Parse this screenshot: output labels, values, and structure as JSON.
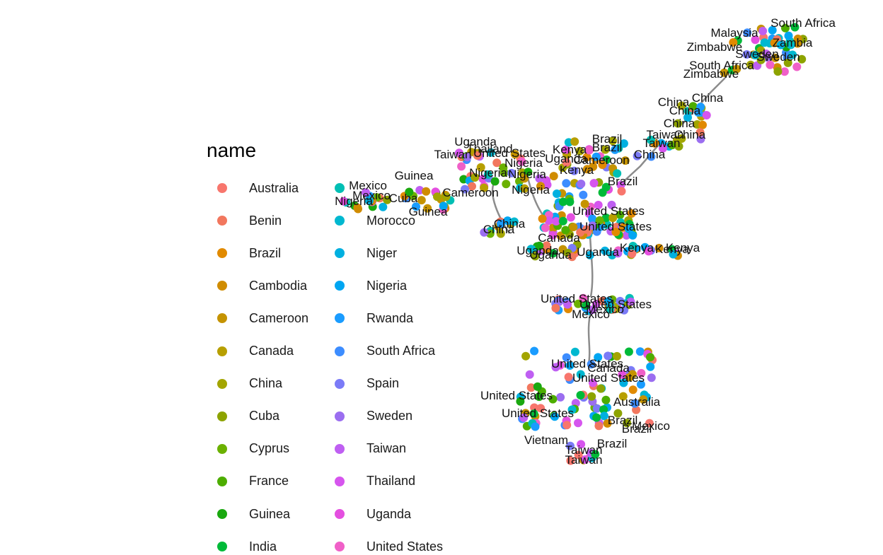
{
  "legend": {
    "title": "name",
    "items": [
      {
        "label": "Australia",
        "color": "#F8766D"
      },
      {
        "label": "Benin",
        "color": "#F2775E"
      },
      {
        "label": "Brazil",
        "color": "#E18A00"
      },
      {
        "label": "Cambodia",
        "color": "#D08C00"
      },
      {
        "label": "Cameroon",
        "color": "#C59300"
      },
      {
        "label": "Canada",
        "color": "#B79F00"
      },
      {
        "label": "China",
        "color": "#A3A500"
      },
      {
        "label": "Cuba",
        "color": "#8DA300"
      },
      {
        "label": "Cyprus",
        "color": "#6BB100"
      },
      {
        "label": "France",
        "color": "#4DAD00"
      },
      {
        "label": "Guinea",
        "color": "#1AA80F"
      },
      {
        "label": "India",
        "color": "#00BA38"
      },
      {
        "label": "",
        "color": "#00BFB4"
      },
      {
        "label": "Morocco",
        "color": "#00B8D0"
      },
      {
        "label": "Niger",
        "color": "#00B0E0"
      },
      {
        "label": "Nigeria",
        "color": "#00A6F2"
      },
      {
        "label": "Rwanda",
        "color": "#1A9CFF"
      },
      {
        "label": "South Africa",
        "color": "#3D8DFF"
      },
      {
        "label": "Spain",
        "color": "#7B7BF7"
      },
      {
        "label": "Sweden",
        "color": "#9B6EF0"
      },
      {
        "label": "Taiwan",
        "color": "#BF5FF2"
      },
      {
        "label": "Thailand",
        "color": "#D655EE"
      },
      {
        "label": "Uganda",
        "color": "#E44FE0"
      },
      {
        "label": "United States",
        "color": "#F060C8"
      }
    ]
  },
  "graph": {
    "edge_color": "#8C8C8C",
    "node_labels": [
      "South Africa",
      "Zimbabwe",
      "Sweden",
      "Malaysia",
      "South Africa",
      "Zimbabwe",
      "Sweden",
      "Zambia",
      "China",
      "China",
      "China",
      "China",
      "Taiwan",
      "Taiwan",
      "China",
      "China",
      "Brazil",
      "Brazil",
      "Cameroon",
      "Kenya",
      "Uganda",
      "Brazil",
      "Kenya",
      "Taiwan",
      "Uganda",
      "Thailand",
      "United States",
      "Nigeria",
      "Nigeria",
      "Nigeria",
      "Mexico",
      "Guinea",
      "Nigeria",
      "Cameroon",
      "China",
      "China",
      "Cuba",
      "Guinea",
      "Nigeria",
      "Mexico",
      "United States",
      "United States",
      "Canada",
      "Uganda",
      "Uganda",
      "Kenya",
      "Kenya",
      "Kenya",
      "Uganda",
      "United States",
      "United States",
      "Mexico",
      "Mexico",
      "United States",
      "United States",
      "Brazil",
      "Brazil",
      "Mexico",
      "Taiwan",
      "Taiwan",
      "United States",
      "United States",
      "Australia",
      "Canada",
      "Vietnam",
      "Brazil"
    ]
  }
}
